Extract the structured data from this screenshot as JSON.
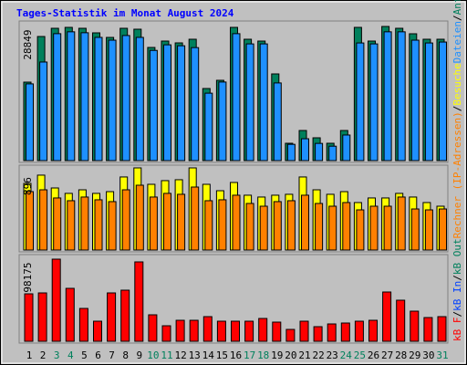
{
  "title": "Tages-Statistik im Monat August 2024",
  "legend_separator": "/",
  "categories": [
    "1",
    "2",
    "3",
    "4",
    "5",
    "6",
    "7",
    "8",
    "9",
    "10",
    "11",
    "12",
    "13",
    "14",
    "15",
    "16",
    "17",
    "18",
    "19",
    "20",
    "21",
    "22",
    "23",
    "24",
    "25",
    "26",
    "27",
    "28",
    "29",
    "30",
    "31"
  ],
  "category_colors": [
    "#000000",
    "#000000",
    "#00805c",
    "#00805c",
    "#000000",
    "#000000",
    "#000000",
    "#000000",
    "#000000",
    "#00805c",
    "#00805c",
    "#000000",
    "#000000",
    "#000000",
    "#000000",
    "#000000",
    "#00805c",
    "#00805c",
    "#000000",
    "#000000",
    "#000000",
    "#000000",
    "#000000",
    "#00805c",
    "#00805c",
    "#000000",
    "#000000",
    "#000000",
    "#000000",
    "#000000",
    "#00805c"
  ],
  "chart_data": [
    {
      "type": "bar",
      "ylim": [
        0,
        28849
      ],
      "yticks": [
        28849
      ],
      "series": [
        {
          "name": "Anfragen",
          "color": "#00805c",
          "values": [
            16878,
            26690,
            28456,
            28652,
            28456,
            27475,
            26494,
            28456,
            28260,
            24335,
            25709,
            25316,
            26101,
            15504,
            17270,
            28652,
            26101,
            25709,
            18644,
            3729,
            6476,
            4906,
            3729,
            6476,
            28652,
            25709,
            28849,
            28456,
            27279,
            26101,
            26101
          ]
        },
        {
          "name": "Dateien",
          "color": "#1e90ff",
          "values": [
            16500,
            21200,
            27300,
            27700,
            27500,
            26500,
            25900,
            26900,
            26500,
            23700,
            24900,
            24700,
            24300,
            14500,
            16900,
            27300,
            25100,
            25100,
            16700,
            3500,
            4700,
            3700,
            3100,
            5500,
            25300,
            25100,
            27700,
            27700,
            25900,
            25300,
            25500
          ]
        }
      ]
    },
    {
      "type": "bar",
      "ylim": [
        0,
        896
      ],
      "yticks": [
        896
      ],
      "series": [
        {
          "name": "Besuche",
          "color": "#ffff00",
          "values": [
            727,
            817,
            677,
            618,
            657,
            618,
            637,
            797,
            896,
            717,
            757,
            767,
            896,
            717,
            647,
            737,
            598,
            578,
            598,
            608,
            797,
            657,
            608,
            637,
            518,
            568,
            568,
            618,
            578,
            518,
            478
          ]
        },
        {
          "name": "Rechner (IP-Adressen)",
          "color": "#ff8000",
          "values": [
            637,
            657,
            568,
            538,
            578,
            548,
            528,
            657,
            707,
            578,
            618,
            608,
            687,
            538,
            548,
            598,
            508,
            478,
            528,
            538,
            598,
            508,
            478,
            518,
            438,
            478,
            478,
            578,
            448,
            438,
            448
          ]
        }
      ]
    },
    {
      "type": "bar",
      "ylim": [
        0,
        98175
      ],
      "yticks": [
        98175
      ],
      "series": [
        {
          "name": "kB F",
          "color": "#ff0000",
          "values": [
            56720,
            57810,
            98175,
            63270,
            39270,
            23998,
            57810,
            61083,
            94900,
            31633,
            18543,
            25087,
            25087,
            29450,
            23998,
            23998,
            23998,
            27270,
            22907,
            14180,
            23998,
            17453,
            20725,
            21816,
            23998,
            25087,
            58901,
            49086,
            35996,
            28360,
            29450
          ]
        }
      ],
      "extra_legend": [
        {
          "name": "kB In",
          "color": "#0040ff"
        },
        {
          "name": "kB Out",
          "color": "#00805c"
        }
      ]
    }
  ]
}
